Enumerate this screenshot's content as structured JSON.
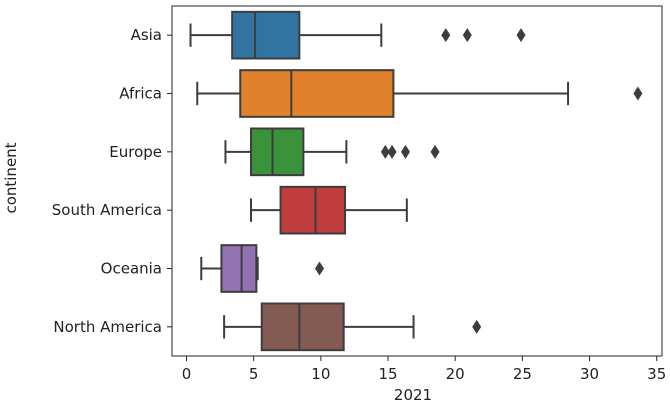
{
  "chart_data": {
    "type": "boxplot",
    "orientation": "horizontal",
    "title": "",
    "xlabel": "2021",
    "ylabel": "continent",
    "xlim": [
      -1,
      35
    ],
    "xticks": [
      0,
      5,
      10,
      15,
      20,
      25,
      30,
      35
    ],
    "xtick_labels": [
      "0",
      "5",
      "10",
      "15",
      "20",
      "25",
      "30",
      "35"
    ],
    "grid": false,
    "legend": "none",
    "categories": [
      "Asia",
      "Africa",
      "Europe",
      "South America",
      "Oceania",
      "North America"
    ],
    "series": [
      {
        "category": "Asia",
        "color": "#3274a1",
        "whisker_low": 0.3,
        "q1": 3.4,
        "median": 5.1,
        "q3": 8.4,
        "whisker_high": 14.5,
        "outliers": [
          19.3,
          20.9,
          24.9
        ]
      },
      {
        "category": "Africa",
        "color": "#e1812c",
        "whisker_low": 0.8,
        "q1": 4.0,
        "median": 7.8,
        "q3": 15.4,
        "whisker_high": 28.4,
        "outliers": [
          33.6
        ]
      },
      {
        "category": "Europe",
        "color": "#3a923a",
        "whisker_low": 2.9,
        "q1": 4.8,
        "median": 6.4,
        "q3": 8.7,
        "whisker_high": 11.9,
        "outliers": [
          14.8,
          15.3,
          16.3,
          18.5
        ]
      },
      {
        "category": "South America",
        "color": "#c03d3e",
        "whisker_low": 4.8,
        "q1": 7.0,
        "median": 9.6,
        "q3": 11.8,
        "whisker_high": 16.4,
        "outliers": []
      },
      {
        "category": "Oceania",
        "color": "#9372b2",
        "whisker_low": 1.1,
        "q1": 2.6,
        "median": 4.1,
        "q3": 5.2,
        "whisker_high": 5.3,
        "outliers": [
          9.9
        ]
      },
      {
        "category": "North America",
        "color": "#845b53",
        "whisker_low": 2.8,
        "q1": 5.6,
        "median": 8.4,
        "q3": 11.7,
        "whisker_high": 16.9,
        "outliers": [
          21.6
        ]
      }
    ]
  }
}
